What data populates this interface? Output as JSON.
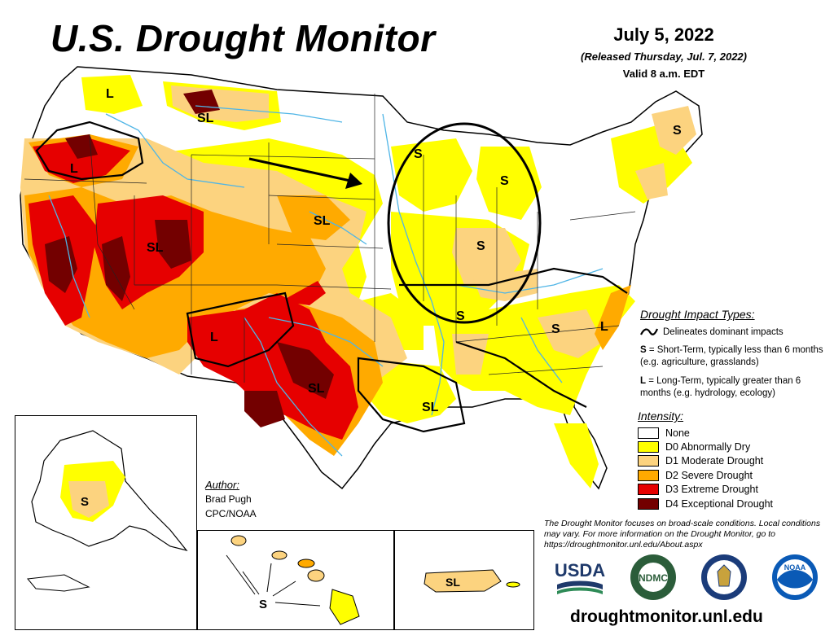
{
  "title": "U.S. Drought Monitor",
  "date": "July 5, 2022",
  "released": "(Released Thursday, Jul. 7, 2022)",
  "valid": "Valid 8 a.m. EDT",
  "impact_types": {
    "heading": "Drought Impact Types:",
    "delineates": "Delineates dominant impacts",
    "short_term_letter": "S",
    "short_term_text": "= Short-Term, typically less than 6 months (e.g. agriculture, grasslands)",
    "long_term_letter": "L",
    "long_term_text": "= Long-Term, typically greater than 6 months (e.g. hydrology, ecology)"
  },
  "intensity": {
    "heading": "Intensity:",
    "levels": [
      {
        "label": "None",
        "color": "#ffffff"
      },
      {
        "label": "D0 Abnormally Dry",
        "color": "#ffff00"
      },
      {
        "label": "D1 Moderate Drought",
        "color": "#fcd37f"
      },
      {
        "label": "D2 Severe Drought",
        "color": "#ffaa00"
      },
      {
        "label": "D3 Extreme Drought",
        "color": "#e60000"
      },
      {
        "label": "D4 Exceptional Drought",
        "color": "#730000"
      }
    ]
  },
  "author": {
    "heading": "Author:",
    "name": "Brad Pugh",
    "org": "CPC/NOAA"
  },
  "disclaimer": "The Drought Monitor focuses on broad-scale conditions. Local conditions may vary. For more information on the Drought Monitor, go to https://droughtmonitor.unl.edu/About.aspx",
  "website": "droughtmonitor.unl.edu",
  "map_labels": {
    "wa": "L",
    "mt": "SL",
    "or": "L",
    "ut": "SL",
    "ne": "SL",
    "nm": "L",
    "tx": "SL",
    "la": "SL",
    "wi": "S",
    "mi": "S",
    "il": "S",
    "ms": "S",
    "sc": "S",
    "nc": "L",
    "me": "S",
    "alaska": "S",
    "hawaii": "S",
    "puerto_rico": "SL"
  },
  "logos": {
    "usda": "USDA",
    "ndmc": "NDMC",
    "noaa": "NOAA"
  }
}
